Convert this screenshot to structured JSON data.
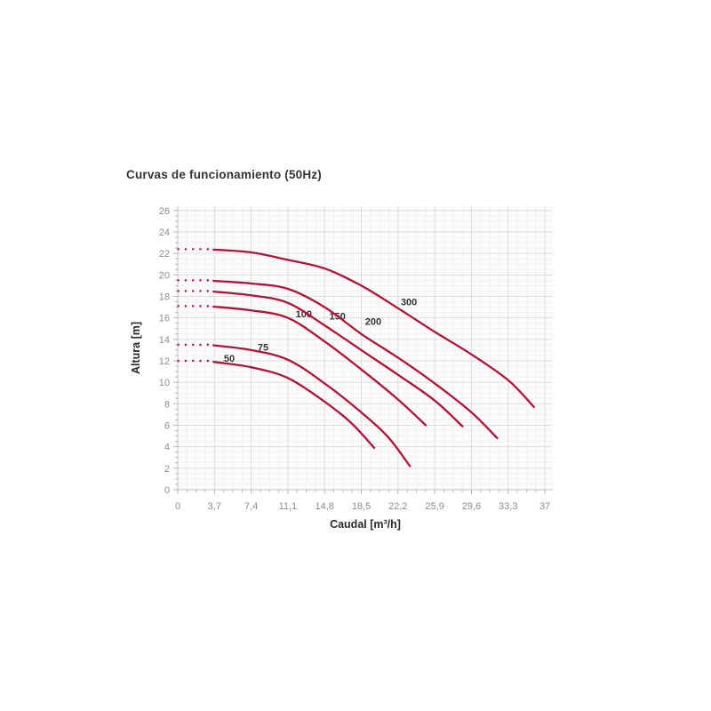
{
  "title": "Curvas de funcionamiento (50Hz)",
  "chart_data": {
    "type": "line",
    "title": "Curvas de funcionamiento (50Hz)",
    "xlabel": "Caudal [m³/h]",
    "ylabel": "Altura [m]",
    "xlim": [
      0,
      37.8
    ],
    "ylim": [
      0,
      26.4
    ],
    "x_tick_values": [
      0,
      3.7,
      7.4,
      11.1,
      14.8,
      18.5,
      22.2,
      25.9,
      29.6,
      33.3,
      37
    ],
    "x_tick_labels": [
      "0",
      "3,7",
      "7,4",
      "11,1",
      "14,8",
      "18,5",
      "22,2",
      "25,9",
      "29,6",
      "33,3",
      "37"
    ],
    "y_tick_values": [
      0,
      2,
      4,
      6,
      8,
      10,
      12,
      14,
      16,
      18,
      20,
      22,
      24,
      26
    ],
    "y_tick_labels": [
      "0",
      "2",
      "4",
      "6",
      "8",
      "10",
      "12",
      "14",
      "16",
      "18",
      "20",
      "22",
      "24",
      "26"
    ],
    "x_minor_step": 0.925,
    "y_minor_step": 0.5,
    "grid": true,
    "legend_position": "none",
    "colors": {
      "curve": "#b01335",
      "grid_major": "#dcdde0",
      "grid_minor": "#f1f2f4",
      "axis": "#c0c0c0",
      "tick": "#b5b5b5",
      "tick_label": "#8c8c8c",
      "text": "#2b2b2b",
      "curve_label": "#333333",
      "plot_bg": "#fcfcfd"
    },
    "series": [
      {
        "name": "50",
        "shutoff_head": 12.0,
        "label_pos": [
          5.2,
          12.25
        ],
        "points": [
          [
            3.6,
            11.9
          ],
          [
            7.4,
            11.4
          ],
          [
            11.1,
            10.4
          ],
          [
            14.8,
            8.2
          ],
          [
            17.5,
            6.2
          ],
          [
            19.8,
            3.9
          ]
        ]
      },
      {
        "name": "75",
        "shutoff_head": 13.5,
        "label_pos": [
          8.6,
          13.3
        ],
        "points": [
          [
            3.6,
            13.45
          ],
          [
            7.4,
            13.0
          ],
          [
            11.1,
            12.1
          ],
          [
            14.8,
            9.9
          ],
          [
            18.5,
            7.2
          ],
          [
            21.2,
            4.9
          ],
          [
            23.4,
            2.2
          ]
        ]
      },
      {
        "name": "100",
        "shutoff_head": 17.1,
        "label_pos": [
          12.7,
          16.4
        ],
        "points": [
          [
            3.6,
            17.05
          ],
          [
            7.4,
            16.7
          ],
          [
            11.1,
            16.0
          ],
          [
            14.8,
            13.8
          ],
          [
            18.5,
            11.2
          ],
          [
            22.2,
            8.4
          ],
          [
            25.0,
            6.0
          ]
        ]
      },
      {
        "name": "150",
        "shutoff_head": 18.5,
        "label_pos": [
          16.1,
          16.2
        ],
        "points": [
          [
            3.6,
            18.45
          ],
          [
            7.4,
            18.1
          ],
          [
            11.1,
            17.4
          ],
          [
            14.8,
            15.3
          ],
          [
            18.5,
            13.0
          ],
          [
            22.2,
            10.7
          ],
          [
            25.9,
            8.3
          ],
          [
            28.7,
            5.9
          ]
        ]
      },
      {
        "name": "200",
        "shutoff_head": 19.5,
        "label_pos": [
          19.7,
          15.7
        ],
        "points": [
          [
            3.6,
            19.45
          ],
          [
            7.4,
            19.2
          ],
          [
            11.1,
            18.7
          ],
          [
            14.8,
            17.0
          ],
          [
            18.5,
            14.5
          ],
          [
            22.2,
            12.3
          ],
          [
            25.9,
            9.9
          ],
          [
            29.6,
            7.2
          ],
          [
            32.2,
            4.8
          ]
        ]
      },
      {
        "name": "300",
        "shutoff_head": 22.4,
        "label_pos": [
          23.3,
          17.5
        ],
        "points": [
          [
            3.6,
            22.35
          ],
          [
            7.4,
            22.1
          ],
          [
            11.1,
            21.4
          ],
          [
            14.8,
            20.6
          ],
          [
            18.5,
            19.0
          ],
          [
            22.2,
            16.9
          ],
          [
            25.9,
            14.7
          ],
          [
            29.6,
            12.6
          ],
          [
            33.3,
            10.2
          ],
          [
            35.9,
            7.7
          ]
        ]
      }
    ],
    "dotted_segment": {
      "q_start": 0.05,
      "q_end": 3.2
    }
  }
}
